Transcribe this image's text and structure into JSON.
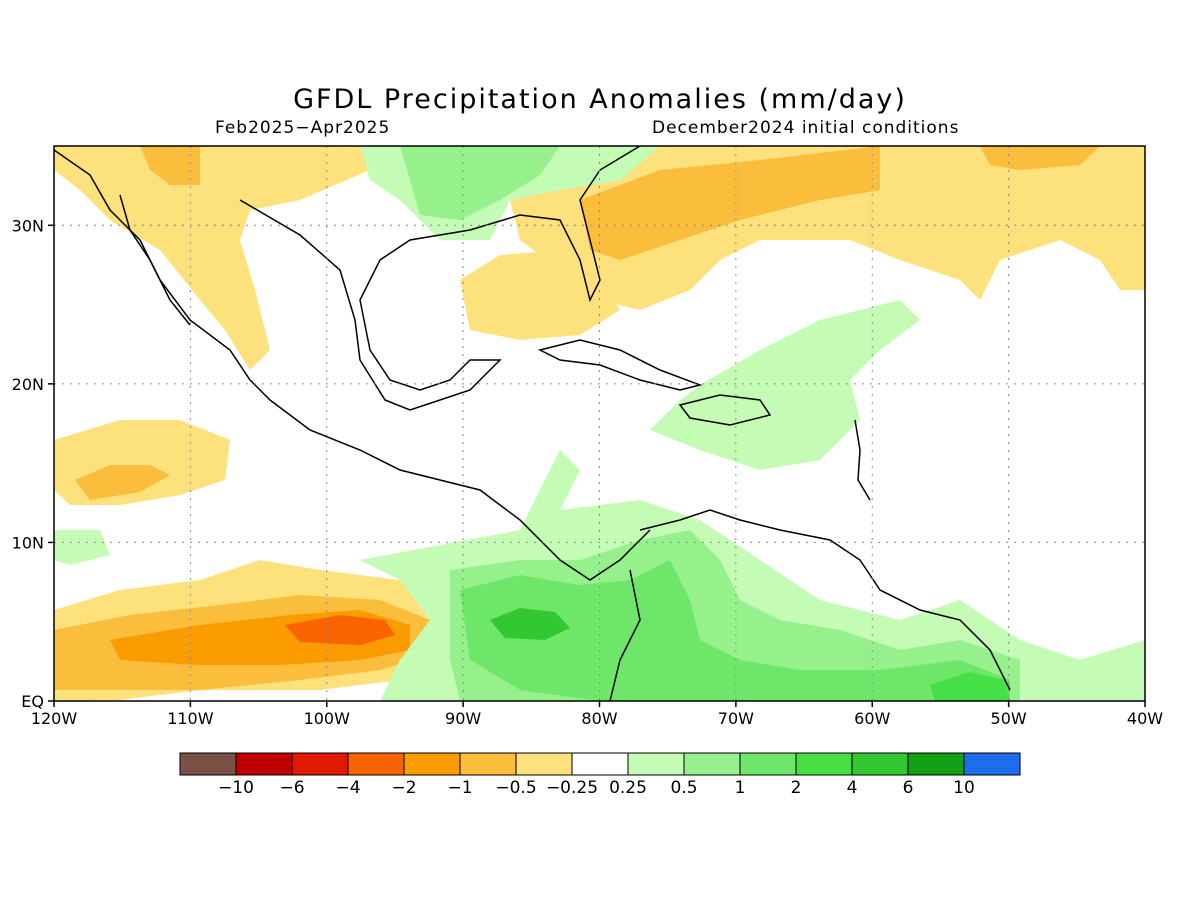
{
  "title": "GFDL Precipitation Anomalies (mm/day)",
  "period": "Feb2025−Apr2025",
  "init_conditions": "December2024 initial conditions",
  "map": {
    "lon_range": [
      -120,
      -40
    ],
    "lat_range": [
      0,
      35
    ],
    "lon_ticks": [
      {
        "value": -120,
        "label": "120W"
      },
      {
        "value": -110,
        "label": "110W"
      },
      {
        "value": -100,
        "label": "100W"
      },
      {
        "value": -90,
        "label": "90W"
      },
      {
        "value": -80,
        "label": "80W"
      },
      {
        "value": -70,
        "label": "70W"
      },
      {
        "value": -60,
        "label": "60W"
      },
      {
        "value": -50,
        "label": "50W"
      },
      {
        "value": -40,
        "label": "40W"
      }
    ],
    "lat_ticks": [
      {
        "value": 0,
        "label": "EQ"
      },
      {
        "value": 10,
        "label": "10N"
      },
      {
        "value": 20,
        "label": "20N"
      },
      {
        "value": 30,
        "label": "30N"
      }
    ]
  },
  "colorbar": {
    "colors": [
      "#7a4f45",
      "#c00000",
      "#e01a00",
      "#fa6400",
      "#fa9b00",
      "#fbbd3c",
      "#fde17c",
      "#ffffff",
      "#c4fcb6",
      "#96f08c",
      "#6ee66a",
      "#46e046",
      "#32c832",
      "#14a014",
      "#1e6eeb"
    ],
    "labels": [
      "−10",
      "−6",
      "−4",
      "−2",
      "−1",
      "−0.5",
      "−0.25",
      "0.25",
      "0.5",
      "1",
      "2",
      "4",
      "6",
      "10"
    ]
  }
}
